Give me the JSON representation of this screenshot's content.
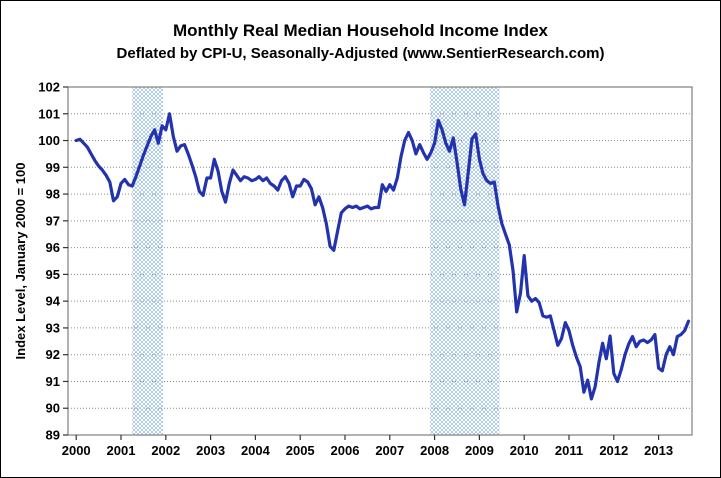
{
  "chart_data": {
    "type": "line",
    "title": "Monthly Real Median Household Income Index",
    "subtitle": "Deflated by CPI-U, Seasonally-Adjusted (www.SentierResearch.com)",
    "ylabel": "Index Level, January 2000 = 100",
    "ylim": [
      89,
      102
    ],
    "ytick_labels": [
      "89",
      "90",
      "91",
      "92",
      "93",
      "94",
      "95",
      "96",
      "97",
      "98",
      "99",
      "100",
      "101",
      "102"
    ],
    "xtick_labels": [
      "2000",
      "2001",
      "2002",
      "2003",
      "2004",
      "2005",
      "2006",
      "2007",
      "2008",
      "2009",
      "2010",
      "2011",
      "2012",
      "2013"
    ],
    "x_start": "2000-01",
    "x_end": "2013-09",
    "grid": true,
    "legend": false,
    "series": [
      {
        "name": "Monthly Real Median Household Income Index",
        "frequency": "monthly",
        "values": [
          100.0,
          100.05,
          99.9,
          99.75,
          99.5,
          99.25,
          99.05,
          98.9,
          98.7,
          98.45,
          97.75,
          97.9,
          98.4,
          98.55,
          98.35,
          98.3,
          98.65,
          99.05,
          99.45,
          99.8,
          100.15,
          100.4,
          99.9,
          100.55,
          100.4,
          101.0,
          100.15,
          99.6,
          99.8,
          99.85,
          99.5,
          99.1,
          98.65,
          98.1,
          97.95,
          98.6,
          98.6,
          99.3,
          98.85,
          98.1,
          97.7,
          98.4,
          98.9,
          98.7,
          98.5,
          98.65,
          98.6,
          98.5,
          98.55,
          98.65,
          98.5,
          98.6,
          98.4,
          98.3,
          98.15,
          98.5,
          98.65,
          98.4,
          97.9,
          98.3,
          98.3,
          98.55,
          98.45,
          98.2,
          97.6,
          97.9,
          97.5,
          96.9,
          96.05,
          95.9,
          96.6,
          97.3,
          97.45,
          97.55,
          97.5,
          97.55,
          97.45,
          97.5,
          97.55,
          97.45,
          97.5,
          97.5,
          98.35,
          98.1,
          98.35,
          98.15,
          98.6,
          99.4,
          100.0,
          100.3,
          100.0,
          99.5,
          99.85,
          99.55,
          99.3,
          99.55,
          99.9,
          100.75,
          100.4,
          99.9,
          99.6,
          100.1,
          99.2,
          98.2,
          97.6,
          98.8,
          100.05,
          100.25,
          99.3,
          98.75,
          98.5,
          98.4,
          98.45,
          97.55,
          96.9,
          96.5,
          96.1,
          95.15,
          93.6,
          94.3,
          95.7,
          94.2,
          94.0,
          94.1,
          93.95,
          93.45,
          93.4,
          93.45,
          92.9,
          92.35,
          92.6,
          93.2,
          92.9,
          92.35,
          91.9,
          91.55,
          90.6,
          91.05,
          90.35,
          90.8,
          91.7,
          92.43,
          91.85,
          92.7,
          91.3,
          91.0,
          91.45,
          92.0,
          92.4,
          92.68,
          92.3,
          92.5,
          92.55,
          92.45,
          92.55,
          92.75,
          91.5,
          91.4,
          92.0,
          92.3,
          92.0,
          92.68,
          92.75,
          92.9,
          93.25
        ]
      }
    ],
    "recession_bands": [
      {
        "from_year": 2001.25,
        "to_year": 2001.94
      },
      {
        "from_year": 2007.9,
        "to_year": 2009.45
      }
    ],
    "colors": {
      "line": "#2233ad",
      "band": "#aecbea",
      "grid": "#8c8c8c",
      "plot_border": "#808080",
      "text": "#000000"
    }
  }
}
